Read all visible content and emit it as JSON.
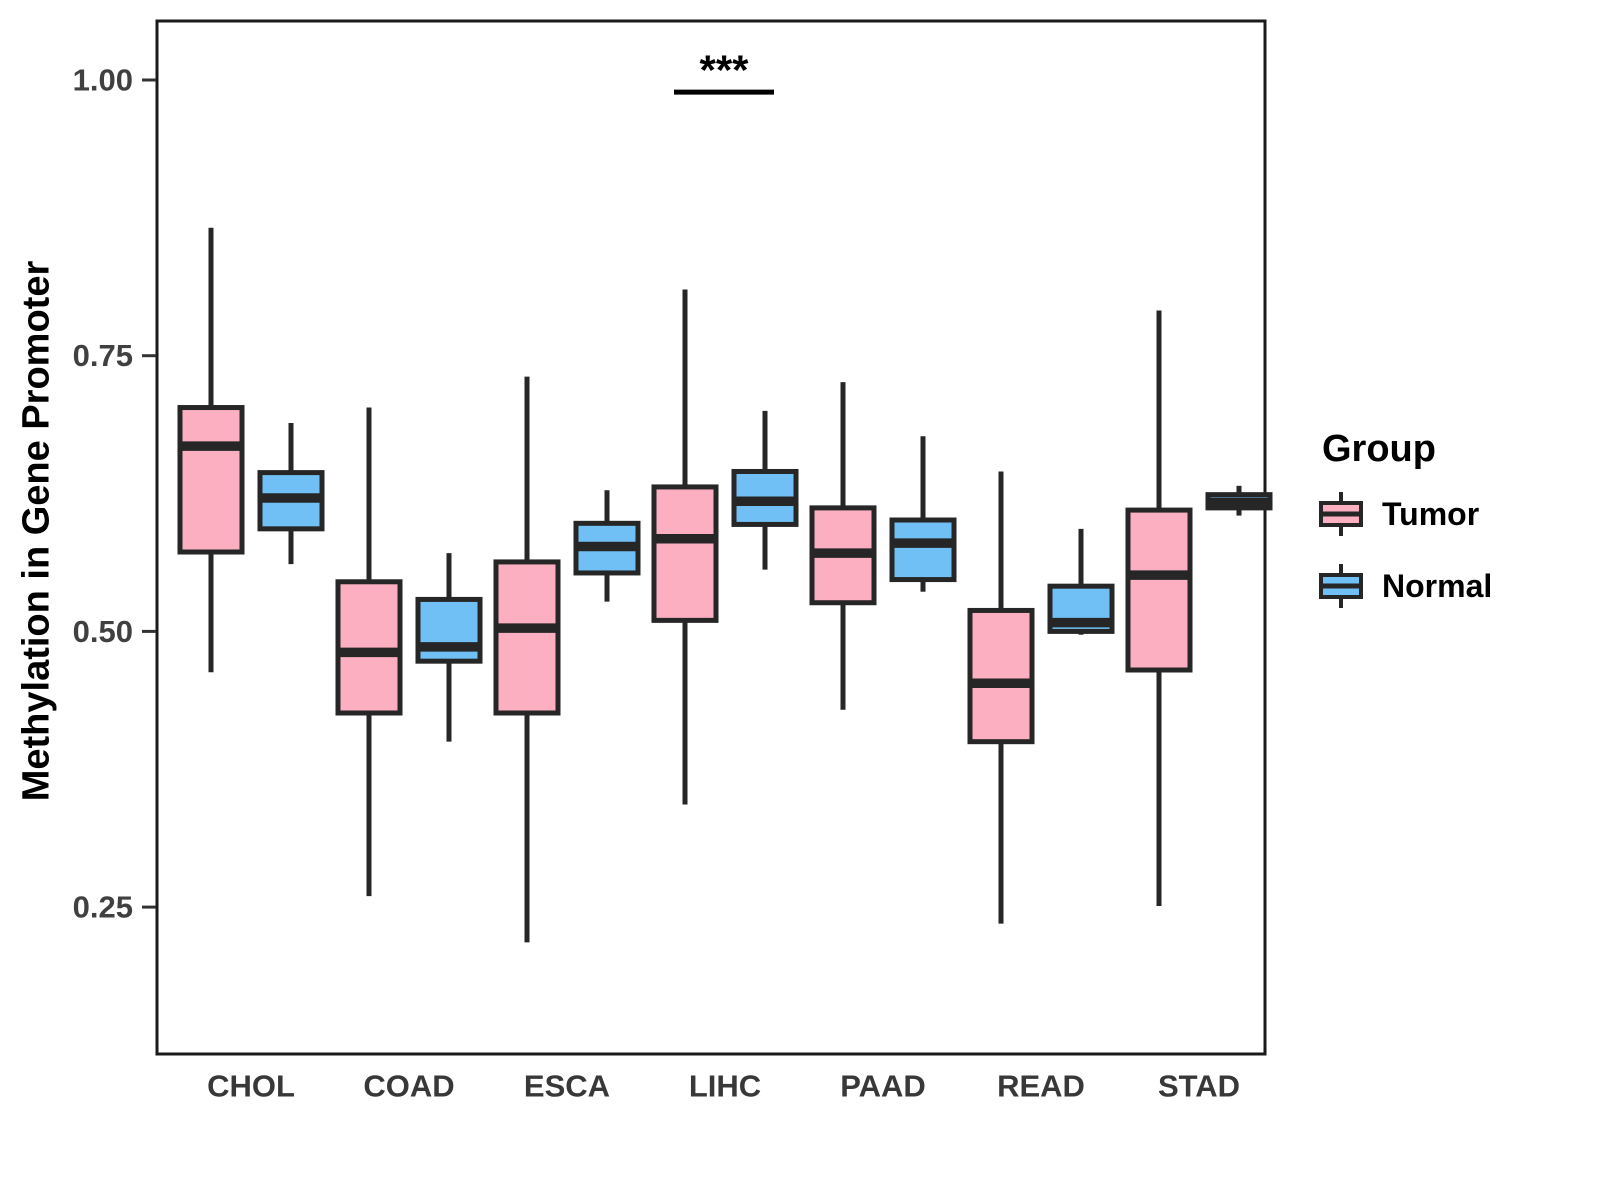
{
  "y_axis": {
    "title": "Methylation in Gene Promoter",
    "ticks": [
      {
        "label": "1.00",
        "value": 1.0
      },
      {
        "label": "0.75",
        "value": 0.75
      },
      {
        "label": "0.50",
        "value": 0.5
      },
      {
        "label": "0.25",
        "value": 0.25
      }
    ]
  },
  "x_axis": {
    "categories": [
      "CHOL",
      "COAD",
      "ESCA",
      "LIHC",
      "PAAD",
      "READ",
      "STAD"
    ]
  },
  "legend": {
    "title": "Group",
    "items": [
      {
        "label": "Tumor",
        "fill": "#FBAFC1"
      },
      {
        "label": "Normal",
        "fill": "#70C0F5"
      }
    ]
  },
  "annotation": {
    "label": "***",
    "category": "LIHC"
  },
  "colors": {
    "box_stroke": "#262626",
    "panel_border": "#1A1A1A",
    "tick_mark": "#333333"
  },
  "chart_data": {
    "type": "boxplot",
    "title": "",
    "xlabel": "",
    "ylabel": "Methylation in Gene Promoter",
    "categories": [
      "CHOL",
      "COAD",
      "ESCA",
      "LIHC",
      "PAAD",
      "READ",
      "STAD"
    ],
    "ylim": [
      0.115,
      1.055
    ],
    "yticks": [
      0.25,
      0.5,
      0.75,
      1.0
    ],
    "grid": false,
    "legend_position": "right",
    "series": [
      {
        "name": "Tumor",
        "color": "#FBAFC1",
        "boxes": [
          {
            "category": "CHOL",
            "min": 0.463,
            "q1": 0.572,
            "median": 0.668,
            "q3": 0.703,
            "max": 0.866
          },
          {
            "category": "COAD",
            "min": 0.26,
            "q1": 0.426,
            "median": 0.481,
            "q3": 0.545,
            "max": 0.703
          },
          {
            "category": "ESCA",
            "min": 0.218,
            "q1": 0.426,
            "median": 0.503,
            "q3": 0.563,
            "max": 0.731
          },
          {
            "category": "LIHC",
            "min": 0.343,
            "q1": 0.51,
            "median": 0.584,
            "q3": 0.631,
            "max": 0.81
          },
          {
            "category": "PAAD",
            "min": 0.429,
            "q1": 0.526,
            "median": 0.571,
            "q3": 0.612,
            "max": 0.726
          },
          {
            "category": "READ",
            "min": 0.235,
            "q1": 0.4,
            "median": 0.453,
            "q3": 0.519,
            "max": 0.645
          },
          {
            "category": "STAD",
            "min": 0.251,
            "q1": 0.465,
            "median": 0.551,
            "q3": 0.61,
            "max": 0.791
          }
        ]
      },
      {
        "name": "Normal",
        "color": "#70C0F5",
        "boxes": [
          {
            "category": "CHOL",
            "min": 0.561,
            "q1": 0.593,
            "median": 0.621,
            "q3": 0.644,
            "max": 0.689
          },
          {
            "category": "COAD",
            "min": 0.4,
            "q1": 0.473,
            "median": 0.486,
            "q3": 0.529,
            "max": 0.571
          },
          {
            "category": "ESCA",
            "min": 0.527,
            "q1": 0.553,
            "median": 0.577,
            "q3": 0.598,
            "max": 0.628
          },
          {
            "category": "LIHC",
            "min": 0.556,
            "q1": 0.597,
            "median": 0.618,
            "q3": 0.645,
            "max": 0.7
          },
          {
            "category": "PAAD",
            "min": 0.536,
            "q1": 0.547,
            "median": 0.58,
            "q3": 0.601,
            "max": 0.677
          },
          {
            "category": "READ",
            "min": 0.497,
            "q1": 0.5,
            "median": 0.508,
            "q3": 0.541,
            "max": 0.593
          },
          {
            "category": "STAD",
            "min": 0.605,
            "q1": 0.612,
            "median": 0.617,
            "q3": 0.624,
            "max": 0.632
          }
        ]
      }
    ],
    "significance": {
      "label": "***",
      "category": "LIHC",
      "bar_y": 0.989,
      "text_y": 0.996
    }
  }
}
